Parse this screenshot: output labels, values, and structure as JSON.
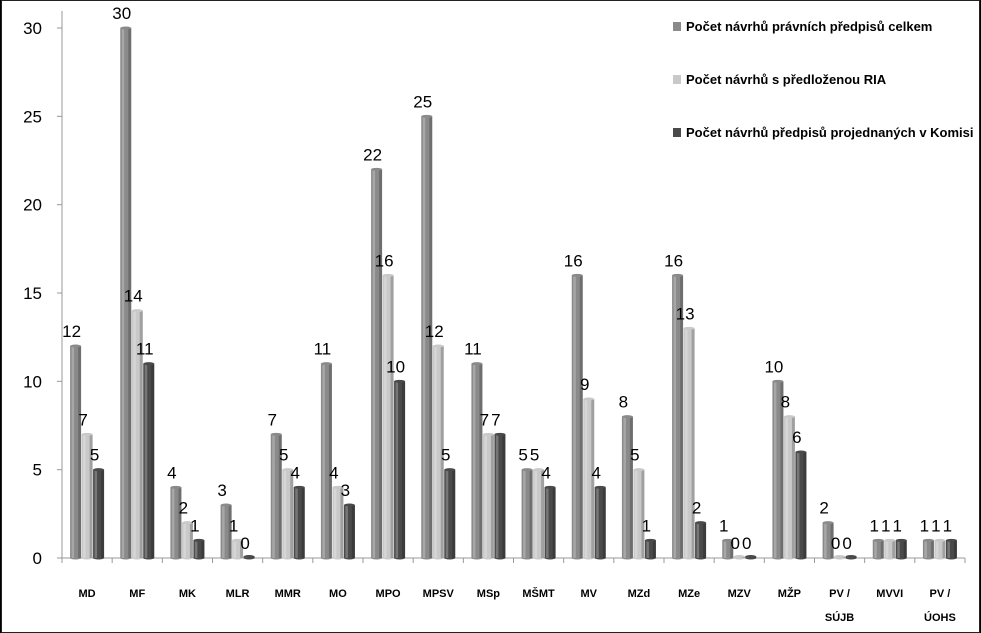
{
  "chart_data": {
    "type": "bar",
    "categories": [
      "MD",
      "MF",
      "MK",
      "MLR",
      "MMR",
      "MO",
      "MPO",
      "MPSV",
      "MSp",
      "MŠMT",
      "MV",
      "MZd",
      "MZe",
      "MZV",
      "MŽP",
      [
        "PV /",
        "SÚJB"
      ],
      "MVVI",
      [
        "PV /",
        "ÚOHS"
      ]
    ],
    "series": [
      {
        "name": "Počet návrhů právních předpisů celkem",
        "color": "#8a8a8a",
        "values": [
          12,
          30,
          4,
          3,
          7,
          11,
          22,
          25,
          11,
          5,
          16,
          8,
          16,
          1,
          10,
          2,
          1,
          1
        ]
      },
      {
        "name": "Počet návrhů s předloženou RIA",
        "color": "#c9c9c9",
        "values": [
          7,
          14,
          2,
          1,
          5,
          4,
          16,
          12,
          7,
          5,
          9,
          5,
          13,
          0,
          8,
          0,
          1,
          1
        ]
      },
      {
        "name": "Počet návrhů předpisů projednaných v Komisi",
        "color": "#4a4a4a",
        "values": [
          5,
          11,
          1,
          0,
          4,
          3,
          10,
          5,
          7,
          4,
          4,
          1,
          2,
          0,
          6,
          0,
          1,
          1
        ]
      }
    ],
    "ylim": [
      0,
      30
    ],
    "yticks": [
      0,
      5,
      10,
      15,
      20,
      25,
      30
    ],
    "legend_position": "top-right",
    "grid": false
  }
}
